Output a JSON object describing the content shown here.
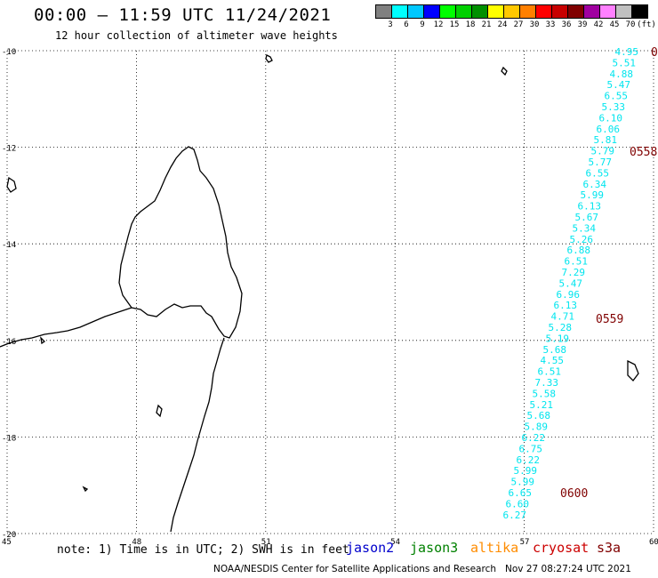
{
  "header": {
    "title": "00:00 – 11:59 UTC 11/24/2021",
    "subtitle": "12 hour collection of altimeter wave heights"
  },
  "scale": {
    "colors": [
      "#808080",
      "#00ffff",
      "#00c8ff",
      "#0000ff",
      "#00ff00",
      "#00d000",
      "#009000",
      "#ffff00",
      "#ffc800",
      "#ff8000",
      "#ff0000",
      "#c80000",
      "#800000",
      "#a000a0",
      "#ff80ff",
      "#c0c0c0",
      "#000000"
    ],
    "labels": [
      "3",
      "6",
      "9",
      "12",
      "15",
      "18",
      "21",
      "24",
      "27",
      "30",
      "33",
      "36",
      "39",
      "42",
      "45",
      "70",
      "(ft)"
    ]
  },
  "axes": {
    "lat_labels": [
      "-10",
      "-12",
      "-14",
      "-16",
      "-18",
      "-20"
    ],
    "lon_labels": [
      "45",
      "48",
      "51",
      "54",
      "57",
      "60"
    ]
  },
  "track": {
    "color": "#00e5ee",
    "time_color": "#800000",
    "values": [
      "4.95",
      "5.51",
      "4.88",
      "5.47",
      "6.55",
      "5.33",
      "6.10",
      "6.06",
      "5.81",
      "5.79",
      "5.77",
      "6.55",
      "6.34",
      "5.99",
      "6.13",
      "5.67",
      "5.34",
      "5.26",
      "6.88",
      "6.51",
      "7.29",
      "5.47",
      "6.96",
      "6.13",
      "4.71",
      "5.28",
      "5.19",
      "5.68",
      "4.55",
      "6.51",
      "7.33",
      "5.58",
      "5.21",
      "5.68",
      "5.89",
      "6.22",
      "6.75",
      "6.22",
      "5.99",
      "5.99",
      "6.65",
      "6.60",
      "6.27"
    ],
    "times": [
      "0558",
      "0559",
      "0600"
    ]
  },
  "note": "note: 1) Time is in UTC; 2) SWH is in feet",
  "satellites": [
    {
      "name": "jason2",
      "color": "#0000cc"
    },
    {
      "name": "jason3",
      "color": "#008000"
    },
    {
      "name": "altika",
      "color": "#ff8c00"
    },
    {
      "name": "cryosat",
      "color": "#cc0000"
    },
    {
      "name": "s3a",
      "color": "#800000"
    }
  ],
  "credit": "NOAA/NESDIS Center for Satellite Applications and Research   Nov 27 08:27:24 UTC 2021"
}
